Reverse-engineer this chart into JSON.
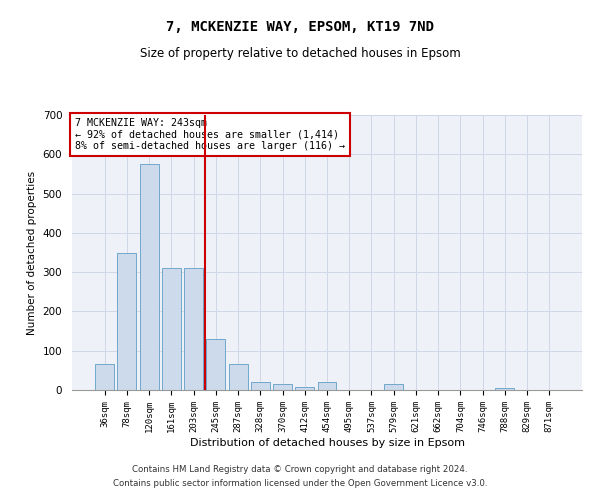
{
  "title": "7, MCKENZIE WAY, EPSOM, KT19 7ND",
  "subtitle": "Size of property relative to detached houses in Epsom",
  "xlabel": "Distribution of detached houses by size in Epsom",
  "ylabel": "Number of detached properties",
  "footer_line1": "Contains HM Land Registry data © Crown copyright and database right 2024.",
  "footer_line2": "Contains public sector information licensed under the Open Government Licence v3.0.",
  "annotation_line1": "7 MCKENZIE WAY: 243sqm",
  "annotation_line2": "← 92% of detached houses are smaller (1,414)",
  "annotation_line3": "8% of semi-detached houses are larger (116) →",
  "bar_color": "#ccdaeb",
  "bar_edge_color": "#6fa8cc",
  "vline_color": "#cc0000",
  "annotation_box_color": "#cc0000",
  "grid_color": "#d0d8e8",
  "background_color": "#eef2f8",
  "bins": [
    "36sqm",
    "78sqm",
    "120sqm",
    "161sqm",
    "203sqm",
    "245sqm",
    "287sqm",
    "328sqm",
    "370sqm",
    "412sqm",
    "454sqm",
    "495sqm",
    "537sqm",
    "579sqm",
    "621sqm",
    "662sqm",
    "704sqm",
    "746sqm",
    "788sqm",
    "829sqm",
    "871sqm"
  ],
  "values": [
    65,
    350,
    575,
    310,
    310,
    130,
    65,
    20,
    15,
    8,
    20,
    0,
    0,
    15,
    0,
    0,
    0,
    0,
    5,
    0,
    0
  ],
  "ylim": [
    0,
    700
  ],
  "yticks": [
    0,
    100,
    200,
    300,
    400,
    500,
    600,
    700
  ],
  "vline_pos": 4.5
}
